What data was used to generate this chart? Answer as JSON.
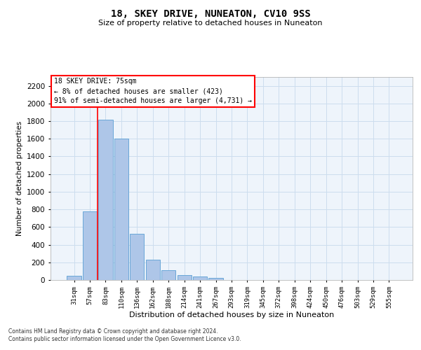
{
  "title": "18, SKEY DRIVE, NUNEATON, CV10 9SS",
  "subtitle": "Size of property relative to detached houses in Nuneaton",
  "xlabel": "Distribution of detached houses by size in Nuneaton",
  "ylabel": "Number of detached properties",
  "categories": [
    "31sqm",
    "57sqm",
    "83sqm",
    "110sqm",
    "136sqm",
    "162sqm",
    "188sqm",
    "214sqm",
    "241sqm",
    "267sqm",
    "293sqm",
    "319sqm",
    "345sqm",
    "372sqm",
    "398sqm",
    "424sqm",
    "450sqm",
    "476sqm",
    "503sqm",
    "529sqm",
    "555sqm"
  ],
  "values": [
    45,
    780,
    1820,
    1600,
    520,
    230,
    108,
    52,
    38,
    20,
    0,
    0,
    0,
    0,
    0,
    0,
    0,
    0,
    0,
    0,
    0
  ],
  "bar_color": "#aec6e8",
  "bar_edgecolor": "#5a9fd4",
  "redline_x": 1.5,
  "annotation_text": "18 SKEY DRIVE: 75sqm\n← 8% of detached houses are smaller (423)\n91% of semi-detached houses are larger (4,731) →",
  "ylim": [
    0,
    2300
  ],
  "yticks": [
    0,
    200,
    400,
    600,
    800,
    1000,
    1200,
    1400,
    1600,
    1800,
    2000,
    2200
  ],
  "grid_color": "#ccddee",
  "background_color": "#eef4fb",
  "footer_line1": "Contains HM Land Registry data © Crown copyright and database right 2024.",
  "footer_line2": "Contains public sector information licensed under the Open Government Licence v3.0."
}
